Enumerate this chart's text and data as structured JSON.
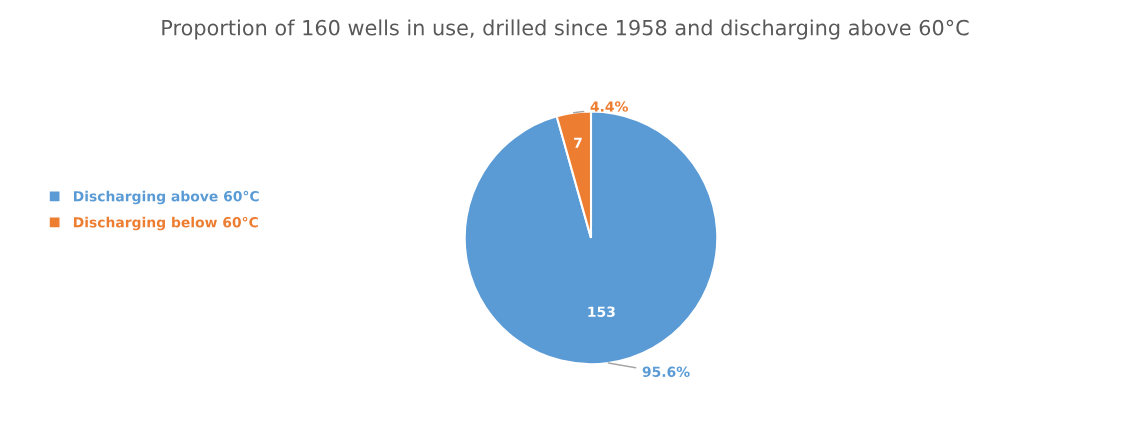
{
  "chart_data": {
    "type": "pie",
    "title": "Proportion of 160 wells in use, drilled since 1958 and discharging above 60°C",
    "categories": [
      "Discharging above 60°C",
      "Discharging below 60°C"
    ],
    "values": [
      153,
      7
    ],
    "colors": [
      "#5b9bd5",
      "#ed7d31"
    ],
    "data_labels": true,
    "annotations": [
      "95.6%",
      "4.4%"
    ],
    "legend": "left"
  }
}
